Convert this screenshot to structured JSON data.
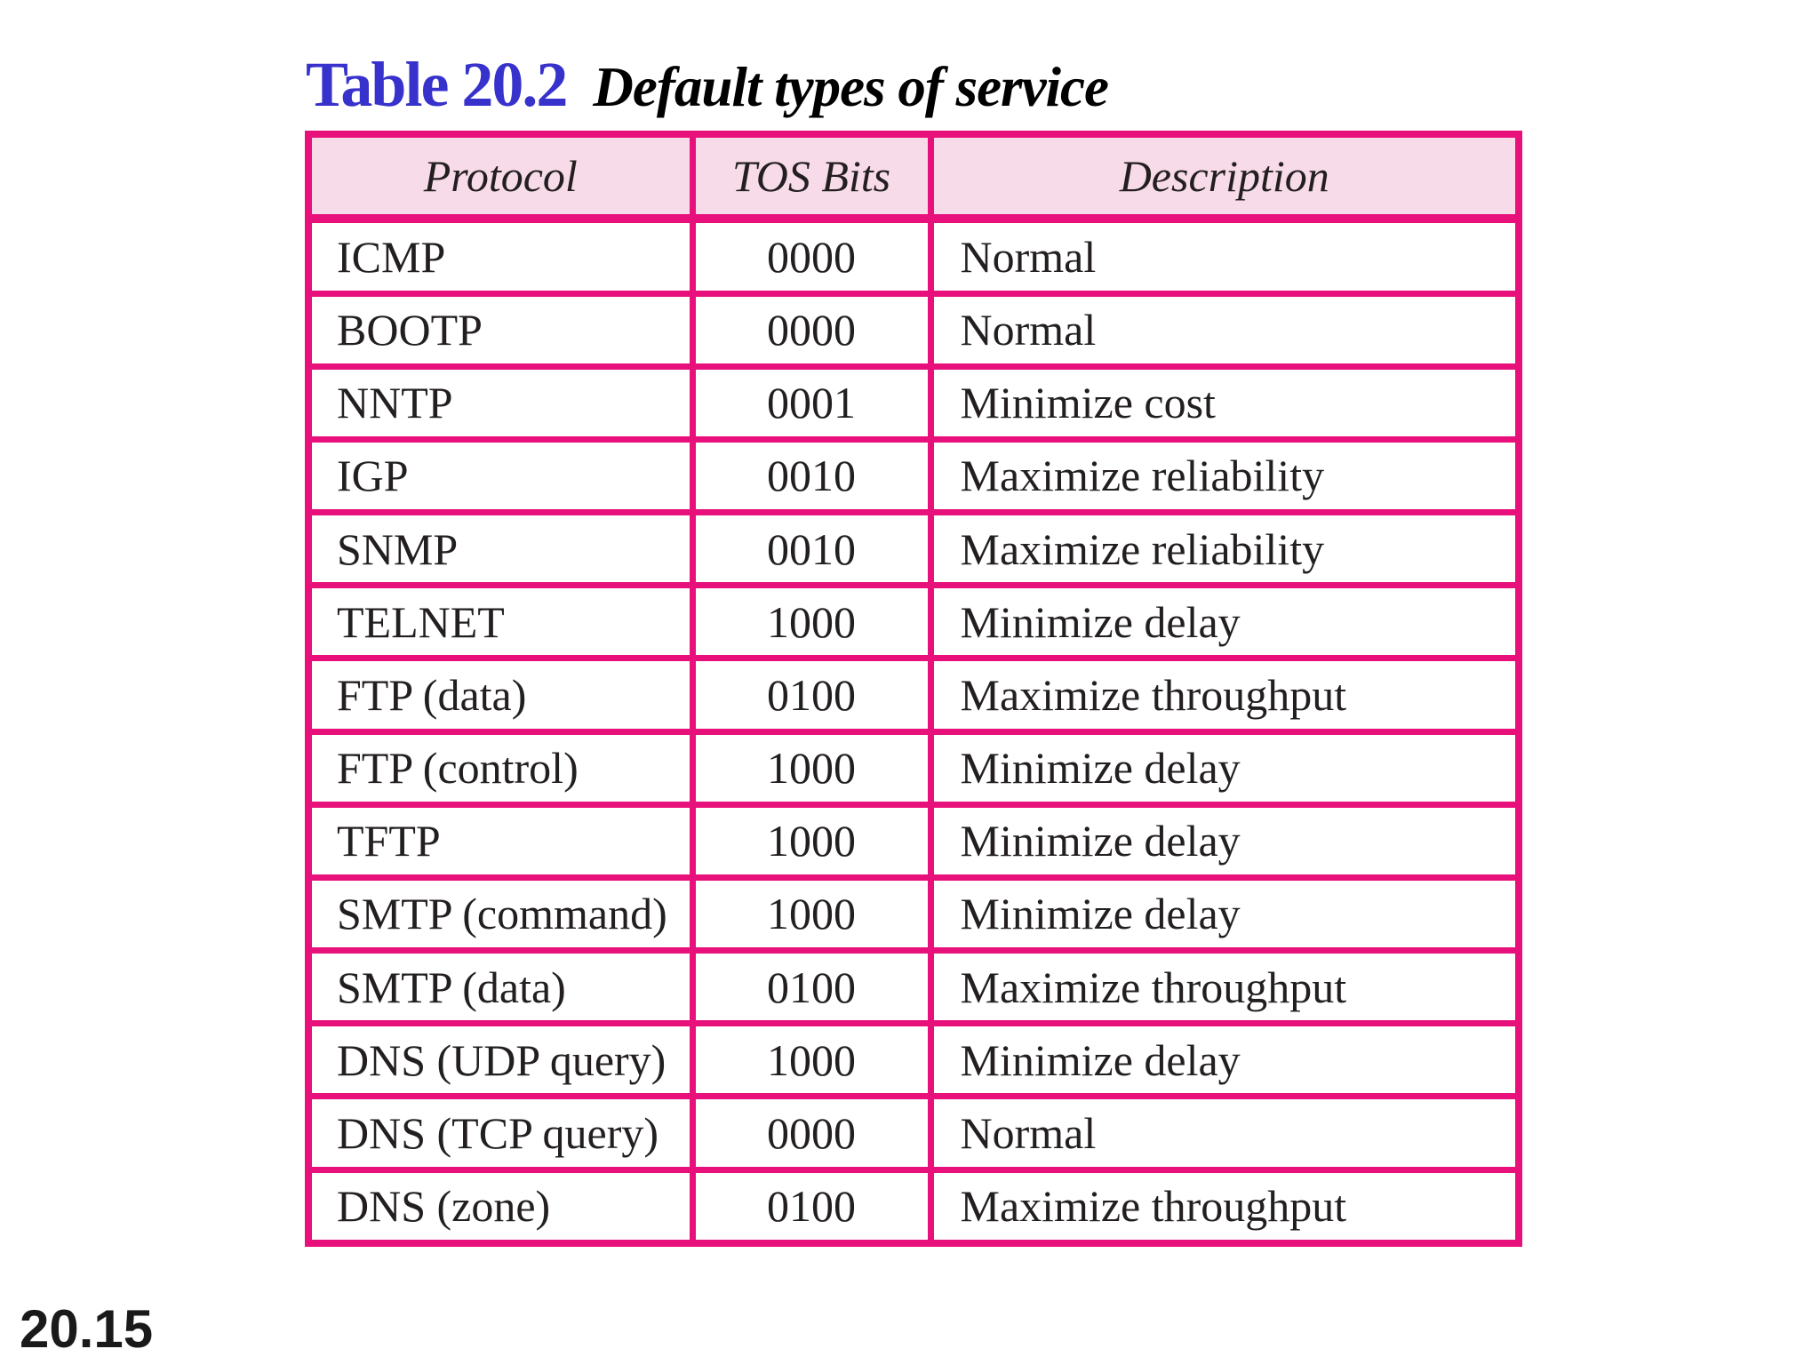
{
  "title": {
    "label": "Table 20.2",
    "subtitle": "Default types of service"
  },
  "footer": {
    "page_number": "20.15"
  },
  "colors": {
    "table_border": "#e8117c",
    "header_background": "#f8dbe9",
    "title_blue": "#3832cc",
    "text": "#231f20",
    "page_background": "#ffffff"
  },
  "table": {
    "columns": [
      "Protocol",
      "TOS Bits",
      "Description"
    ],
    "rows": [
      {
        "protocol": "ICMP",
        "tos_bits": "0000",
        "description": "Normal"
      },
      {
        "protocol": "BOOTP",
        "tos_bits": "0000",
        "description": "Normal"
      },
      {
        "protocol": "NNTP",
        "tos_bits": "0001",
        "description": "Minimize cost"
      },
      {
        "protocol": "IGP",
        "tos_bits": "0010",
        "description": "Maximize reliability"
      },
      {
        "protocol": "SNMP",
        "tos_bits": "0010",
        "description": "Maximize reliability"
      },
      {
        "protocol": "TELNET",
        "tos_bits": "1000",
        "description": "Minimize delay"
      },
      {
        "protocol": "FTP (data)",
        "tos_bits": "0100",
        "description": "Maximize throughput"
      },
      {
        "protocol": "FTP (control)",
        "tos_bits": "1000",
        "description": "Minimize delay"
      },
      {
        "protocol": "TFTP",
        "tos_bits": "1000",
        "description": "Minimize delay"
      },
      {
        "protocol": "SMTP (command)",
        "tos_bits": "1000",
        "description": "Minimize delay"
      },
      {
        "protocol": "SMTP (data)",
        "tos_bits": "0100",
        "description": "Maximize throughput"
      },
      {
        "protocol": "DNS (UDP query)",
        "tos_bits": "1000",
        "description": "Minimize delay"
      },
      {
        "protocol": "DNS (TCP query)",
        "tos_bits": "0000",
        "description": "Normal"
      },
      {
        "protocol": "DNS (zone)",
        "tos_bits": "0100",
        "description": "Maximize throughput"
      }
    ]
  },
  "chart_data": {
    "type": "table",
    "title": "Table 20.2 Default types of service",
    "columns": [
      "Protocol",
      "TOS Bits",
      "Description"
    ],
    "rows": [
      [
        "ICMP",
        "0000",
        "Normal"
      ],
      [
        "BOOTP",
        "0000",
        "Normal"
      ],
      [
        "NNTP",
        "0001",
        "Minimize cost"
      ],
      [
        "IGP",
        "0010",
        "Maximize reliability"
      ],
      [
        "SNMP",
        "0010",
        "Maximize reliability"
      ],
      [
        "TELNET",
        "1000",
        "Minimize delay"
      ],
      [
        "FTP (data)",
        "0100",
        "Maximize throughput"
      ],
      [
        "FTP (control)",
        "1000",
        "Minimize delay"
      ],
      [
        "TFTP",
        "1000",
        "Minimize delay"
      ],
      [
        "SMTP (command)",
        "1000",
        "Minimize delay"
      ],
      [
        "SMTP (data)",
        "0100",
        "Maximize throughput"
      ],
      [
        "DNS (UDP query)",
        "1000",
        "Minimize delay"
      ],
      [
        "DNS (TCP query)",
        "0000",
        "Normal"
      ],
      [
        "DNS (zone)",
        "0100",
        "Maximize throughput"
      ]
    ]
  }
}
